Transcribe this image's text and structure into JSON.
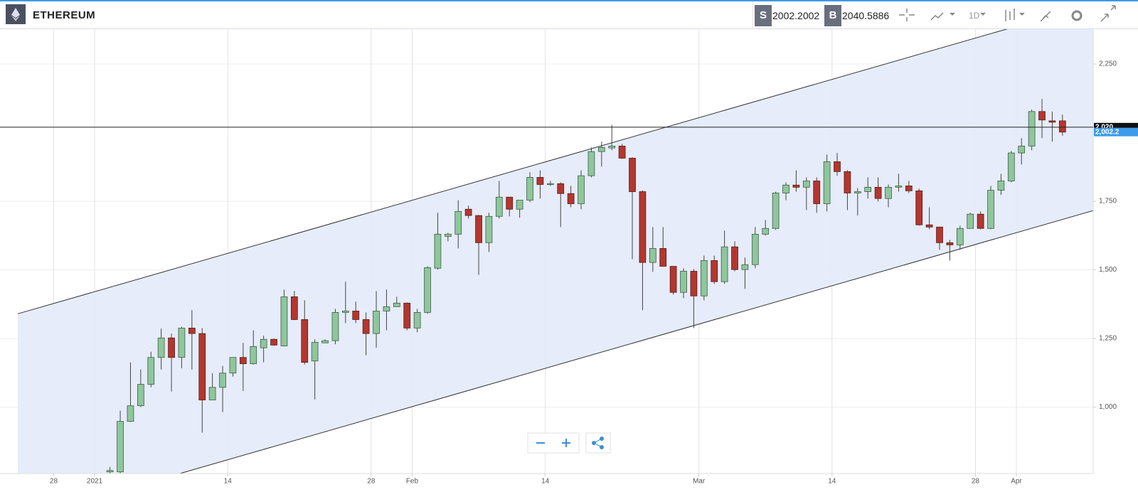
{
  "header": {
    "symbol": "ETHEREUM",
    "sell_tag": "S",
    "sell_price": "2002.2002",
    "buy_tag": "B",
    "buy_price": "2040.5886",
    "interval": "1D"
  },
  "chart_data": {
    "type": "candlestick",
    "categories": [
      null,
      null,
      null,
      null,
      null,
      null,
      null,
      null,
      null,
      null,
      null,
      null,
      null,
      null,
      null,
      null,
      null,
      null,
      null,
      null,
      null,
      null,
      null,
      null,
      null,
      null,
      null,
      null,
      null,
      null,
      null,
      null,
      null,
      null,
      null,
      null,
      null,
      null,
      null,
      null,
      null,
      null,
      null,
      null,
      null,
      null,
      null,
      null,
      null,
      null,
      null,
      null,
      null,
      null,
      null,
      null,
      null,
      null,
      null,
      null,
      null,
      null,
      null,
      null,
      null,
      null,
      null,
      null,
      null,
      null,
      null,
      null,
      null,
      null,
      null,
      null,
      null,
      null,
      null,
      null,
      null,
      null,
      null,
      null,
      null,
      null,
      null,
      null,
      null,
      null,
      null,
      null,
      null,
      null
    ],
    "open": [
      764,
      764,
      948,
      1005,
      1083,
      1181,
      1252,
      1181,
      1288,
      1268,
      1026,
      1072,
      1124,
      1181,
      1158,
      1216,
      1247,
      1223,
      1402,
      1319,
      1168,
      1234,
      1242,
      1345,
      1350,
      1319,
      1268,
      1350,
      1366,
      1379,
      1288,
      1345,
      1506,
      1622,
      1630,
      1721,
      1698,
      1599,
      1695,
      1765,
      1721,
      1754,
      1837,
      1811,
      1814,
      1778,
      1741,
      1843,
      1931,
      1944,
      1951,
      1907,
      1785,
      1527,
      1578,
      1513,
      1418,
      1495,
      1405,
      1534,
      1457,
      1584,
      1501,
      1519,
      1630,
      1651,
      1780,
      1809,
      1801,
      1824,
      1741,
      1894,
      1858,
      1780,
      1785,
      1801,
      1760,
      1801,
      1806,
      1788,
      1664,
      1656,
      1599,
      1591,
      1651,
      1703,
      1651,
      1790,
      1824,
      1926,
      1951,
      2077,
      2043,
      2043
    ],
    "high": [
      782,
      987,
      1163,
      1137,
      1202,
      1286,
      1268,
      1293,
      1353,
      1288,
      1124,
      1150,
      1181,
      1234,
      1280,
      1260,
      1250,
      1428,
      1423,
      1389,
      1247,
      1247,
      1358,
      1457,
      1384,
      1345,
      1423,
      1428,
      1402,
      1381,
      1358,
      1513,
      1708,
      1635,
      1754,
      1734,
      1700,
      1708,
      1824,
      1765,
      1754,
      1856,
      1863,
      1824,
      1819,
      1806,
      1863,
      1946,
      1967,
      2028,
      1959,
      1910,
      1790,
      1656,
      1656,
      1513,
      1506,
      1503,
      1552,
      1552,
      1643,
      1604,
      1545,
      1656,
      1682,
      1785,
      1819,
      1863,
      1837,
      1837,
      1920,
      1926,
      1863,
      1798,
      1837,
      1837,
      1811,
      1850,
      1824,
      1796,
      1728,
      1656,
      1609,
      1661,
      1708,
      1713,
      1806,
      1850,
      1933,
      1980,
      2084,
      2123,
      2077,
      2066
    ],
    "low": [
      759,
      759,
      946,
      1000,
      1072,
      1137,
      1057,
      1142,
      1137,
      907,
      1026,
      982,
      1111,
      1059,
      1155,
      1163,
      1224,
      1221,
      1317,
      1155,
      1028,
      1234,
      1229,
      1306,
      1306,
      1189,
      1216,
      1280,
      1366,
      1280,
      1273,
      1340,
      1501,
      1604,
      1578,
      1687,
      1482,
      1565,
      1687,
      1695,
      1690,
      1747,
      1760,
      1806,
      1656,
      1728,
      1721,
      1837,
      1876,
      1936,
      1904,
      1539,
      1353,
      1493,
      1513,
      1410,
      1397,
      1288,
      1389,
      1449,
      1449,
      1495,
      1431,
      1506,
      1625,
      1646,
      1754,
      1785,
      1718,
      1708,
      1713,
      1843,
      1718,
      1698,
      1760,
      1749,
      1728,
      1785,
      1780,
      1661,
      1648,
      1573,
      1534,
      1573,
      1651,
      1648,
      1648,
      1773,
      1819,
      1884,
      1936,
      1980,
      1967,
      1989
    ],
    "close": [
      769,
      948,
      1005,
      1083,
      1181,
      1252,
      1181,
      1288,
      1268,
      1026,
      1072,
      1124,
      1181,
      1158,
      1221,
      1247,
      1226,
      1402,
      1319,
      1163,
      1236,
      1242,
      1345,
      1350,
      1319,
      1268,
      1350,
      1366,
      1379,
      1288,
      1345,
      1508,
      1630,
      1630,
      1713,
      1698,
      1599,
      1695,
      1765,
      1721,
      1754,
      1837,
      1811,
      1814,
      1778,
      1741,
      1843,
      1931,
      1946,
      1951,
      1907,
      1785,
      1527,
      1578,
      1513,
      1418,
      1495,
      1405,
      1534,
      1457,
      1584,
      1501,
      1519,
      1630,
      1651,
      1780,
      1809,
      1801,
      1824,
      1741,
      1894,
      1858,
      1780,
      1785,
      1801,
      1760,
      1801,
      1806,
      1788,
      1664,
      1656,
      1599,
      1591,
      1651,
      1703,
      1651,
      1790,
      1824,
      1926,
      1951,
      2077,
      2046,
      2038,
      2002
    ],
    "up_color": "#8fc69c",
    "down_color": "#b3372f",
    "xlim": [
      -10.74,
      96
    ],
    "ylim": [
      758,
      2377
    ],
    "xticks": [
      {
        "value": -5.5,
        "label": "28"
      },
      {
        "value": -1.5,
        "label": "2021"
      },
      {
        "value": 11.5,
        "label": "14"
      },
      {
        "value": 25.5,
        "label": "28"
      },
      {
        "value": 29.5,
        "label": "Feb"
      },
      {
        "value": 42.5,
        "label": "14"
      },
      {
        "value": 57.5,
        "label": "Mar"
      },
      {
        "value": 70.5,
        "label": "14"
      },
      {
        "value": 84.5,
        "label": "28"
      },
      {
        "value": 88.5,
        "label": "Apr"
      }
    ],
    "yticks": [
      {
        "value": 1000,
        "label": "1,000"
      },
      {
        "value": 1250,
        "label": "1,250"
      },
      {
        "value": 1500,
        "label": "1,500"
      },
      {
        "value": 1750,
        "label": "1,750"
      },
      {
        "value": 2250,
        "label": "2,250"
      }
    ],
    "grid": true,
    "channel": {
      "upper": [
        [
          -9,
          1340
        ],
        [
          96,
          2468
        ]
      ],
      "lower": [
        [
          -9,
          588
        ],
        [
          96,
          1716
        ]
      ]
    },
    "crosshair": {
      "value": 2020,
      "label": "2,020"
    },
    "last_price": {
      "value": 2002.2,
      "label": "2,002.2"
    }
  }
}
